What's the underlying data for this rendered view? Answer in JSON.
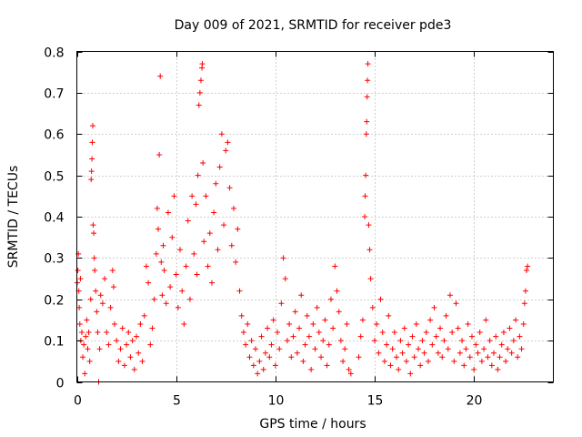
{
  "chart_data": {
    "type": "scatter",
    "title": "Day 009 of 2021, SRMTID for receiver pde3",
    "xlabel": "GPS time / hours",
    "ylabel": "SRMTID / TECUs",
    "xlim": [
      0,
      24
    ],
    "ylim": [
      0,
      0.8
    ],
    "grid": true,
    "marker": "plus",
    "x_ticks": [
      {
        "value": 0,
        "label": "0"
      },
      {
        "value": 5,
        "label": "5"
      },
      {
        "value": 10,
        "label": "10"
      },
      {
        "value": 15,
        "label": "15"
      },
      {
        "value": 20,
        "label": "20"
      }
    ],
    "y_ticks": [
      {
        "value": 0,
        "label": "0"
      },
      {
        "value": 0.1,
        "label": "0.1"
      },
      {
        "value": 0.2,
        "label": "0.2"
      },
      {
        "value": 0.3,
        "label": "0.3"
      },
      {
        "value": 0.4,
        "label": "0.4"
      },
      {
        "value": 0.5,
        "label": "0.5"
      },
      {
        "value": 0.6,
        "label": "0.6"
      },
      {
        "value": 0.7,
        "label": "0.7"
      },
      {
        "value": 0.8,
        "label": "0.8"
      }
    ],
    "series": [
      {
        "name": "SRMTID",
        "color": "#ff0000",
        "points": [
          [
            0.02,
            0.24
          ],
          [
            0.05,
            0.27
          ],
          [
            0.08,
            0.31
          ],
          [
            0.1,
            0.22
          ],
          [
            0.12,
            0.18
          ],
          [
            0.15,
            0.14
          ],
          [
            0.18,
            0.25
          ],
          [
            0.2,
            0.1
          ],
          [
            0.25,
            0.12
          ],
          [
            0.3,
            0.06
          ],
          [
            0.35,
            0.09
          ],
          [
            0.4,
            0.02
          ],
          [
            0.45,
            0.11
          ],
          [
            0.5,
            0.15
          ],
          [
            0.55,
            0.08
          ],
          [
            0.6,
            0.12
          ],
          [
            0.65,
            0.05
          ],
          [
            0.7,
            0.2
          ],
          [
            0.72,
            0.49
          ],
          [
            0.74,
            0.51
          ],
          [
            0.76,
            0.54
          ],
          [
            0.78,
            0.58
          ],
          [
            0.8,
            0.62
          ],
          [
            0.82,
            0.38
          ],
          [
            0.85,
            0.36
          ],
          [
            0.88,
            0.3
          ],
          [
            0.9,
            0.27
          ],
          [
            0.95,
            0.22
          ],
          [
            1.0,
            0.17
          ],
          [
            1.05,
            0.12
          ],
          [
            1.1,
            0.0
          ],
          [
            1.15,
            0.08
          ],
          [
            1.2,
            0.21
          ],
          [
            1.3,
            0.19
          ],
          [
            1.4,
            0.25
          ],
          [
            1.5,
            0.12
          ],
          [
            1.6,
            0.09
          ],
          [
            1.7,
            0.18
          ],
          [
            1.8,
            0.27
          ],
          [
            1.85,
            0.23
          ],
          [
            1.9,
            0.14
          ],
          [
            2.0,
            0.1
          ],
          [
            2.1,
            0.05
          ],
          [
            2.2,
            0.08
          ],
          [
            2.3,
            0.13
          ],
          [
            2.4,
            0.04
          ],
          [
            2.5,
            0.09
          ],
          [
            2.6,
            0.12
          ],
          [
            2.7,
            0.06
          ],
          [
            2.8,
            0.1
          ],
          [
            2.9,
            0.03
          ],
          [
            3.0,
            0.11
          ],
          [
            3.1,
            0.07
          ],
          [
            3.2,
            0.14
          ],
          [
            3.3,
            0.05
          ],
          [
            3.4,
            0.16
          ],
          [
            3.5,
            0.28
          ],
          [
            3.6,
            0.24
          ],
          [
            3.7,
            0.09
          ],
          [
            3.8,
            0.13
          ],
          [
            3.9,
            0.2
          ],
          [
            4.0,
            0.31
          ],
          [
            4.05,
            0.42
          ],
          [
            4.1,
            0.37
          ],
          [
            4.15,
            0.55
          ],
          [
            4.2,
            0.74
          ],
          [
            4.25,
            0.29
          ],
          [
            4.3,
            0.21
          ],
          [
            4.35,
            0.33
          ],
          [
            4.4,
            0.27
          ],
          [
            4.5,
            0.19
          ],
          [
            4.6,
            0.41
          ],
          [
            4.7,
            0.23
          ],
          [
            4.8,
            0.35
          ],
          [
            4.9,
            0.45
          ],
          [
            5.0,
            0.26
          ],
          [
            5.1,
            0.18
          ],
          [
            5.2,
            0.32
          ],
          [
            5.3,
            0.22
          ],
          [
            5.4,
            0.14
          ],
          [
            5.5,
            0.28
          ],
          [
            5.6,
            0.39
          ],
          [
            5.7,
            0.2
          ],
          [
            5.8,
            0.45
          ],
          [
            5.9,
            0.31
          ],
          [
            6.0,
            0.43
          ],
          [
            6.05,
            0.26
          ],
          [
            6.1,
            0.5
          ],
          [
            6.15,
            0.67
          ],
          [
            6.2,
            0.7
          ],
          [
            6.25,
            0.73
          ],
          [
            6.3,
            0.76
          ],
          [
            6.32,
            0.77
          ],
          [
            6.35,
            0.53
          ],
          [
            6.4,
            0.34
          ],
          [
            6.5,
            0.45
          ],
          [
            6.6,
            0.28
          ],
          [
            6.7,
            0.36
          ],
          [
            6.8,
            0.24
          ],
          [
            6.9,
            0.41
          ],
          [
            7.0,
            0.48
          ],
          [
            7.1,
            0.32
          ],
          [
            7.2,
            0.52
          ],
          [
            7.3,
            0.6
          ],
          [
            7.4,
            0.38
          ],
          [
            7.5,
            0.56
          ],
          [
            7.6,
            0.58
          ],
          [
            7.7,
            0.47
          ],
          [
            7.8,
            0.33
          ],
          [
            7.9,
            0.42
          ],
          [
            8.0,
            0.29
          ],
          [
            8.1,
            0.37
          ],
          [
            8.2,
            0.22
          ],
          [
            8.3,
            0.16
          ],
          [
            8.4,
            0.12
          ],
          [
            8.5,
            0.09
          ],
          [
            8.6,
            0.14
          ],
          [
            8.7,
            0.06
          ],
          [
            8.8,
            0.1
          ],
          [
            8.9,
            0.04
          ],
          [
            9.0,
            0.08
          ],
          [
            9.1,
            0.02
          ],
          [
            9.2,
            0.05
          ],
          [
            9.3,
            0.11
          ],
          [
            9.4,
            0.03
          ],
          [
            9.5,
            0.07
          ],
          [
            9.6,
            0.13
          ],
          [
            9.7,
            0.06
          ],
          [
            9.8,
            0.09
          ],
          [
            9.9,
            0.15
          ],
          [
            10.0,
            0.04
          ],
          [
            10.1,
            0.12
          ],
          [
            10.2,
            0.08
          ],
          [
            10.3,
            0.19
          ],
          [
            10.4,
            0.3
          ],
          [
            10.5,
            0.25
          ],
          [
            10.6,
            0.1
          ],
          [
            10.7,
            0.14
          ],
          [
            10.8,
            0.06
          ],
          [
            10.9,
            0.11
          ],
          [
            11.0,
            0.17
          ],
          [
            11.1,
            0.07
          ],
          [
            11.2,
            0.13
          ],
          [
            11.3,
            0.21
          ],
          [
            11.4,
            0.05
          ],
          [
            11.5,
            0.09
          ],
          [
            11.6,
            0.16
          ],
          [
            11.7,
            0.11
          ],
          [
            11.8,
            0.03
          ],
          [
            11.9,
            0.14
          ],
          [
            12.0,
            0.08
          ],
          [
            12.1,
            0.18
          ],
          [
            12.2,
            0.12
          ],
          [
            12.3,
            0.06
          ],
          [
            12.4,
            0.1
          ],
          [
            12.5,
            0.15
          ],
          [
            12.6,
            0.04
          ],
          [
            12.7,
            0.09
          ],
          [
            12.8,
            0.2
          ],
          [
            12.9,
            0.13
          ],
          [
            13.0,
            0.28
          ],
          [
            13.1,
            0.22
          ],
          [
            13.2,
            0.17
          ],
          [
            13.3,
            0.1
          ],
          [
            13.4,
            0.05
          ],
          [
            13.5,
            0.08
          ],
          [
            13.6,
            0.14
          ],
          [
            13.7,
            0.03
          ],
          [
            13.8,
            0.02
          ],
          [
            14.2,
            0.06
          ],
          [
            14.3,
            0.11
          ],
          [
            14.4,
            0.15
          ],
          [
            14.5,
            0.4
          ],
          [
            14.52,
            0.45
          ],
          [
            14.55,
            0.5
          ],
          [
            14.58,
            0.6
          ],
          [
            14.6,
            0.63
          ],
          [
            14.62,
            0.69
          ],
          [
            14.64,
            0.73
          ],
          [
            14.66,
            0.77
          ],
          [
            14.7,
            0.38
          ],
          [
            14.75,
            0.32
          ],
          [
            14.8,
            0.25
          ],
          [
            14.9,
            0.18
          ],
          [
            15.0,
            0.1
          ],
          [
            15.1,
            0.14
          ],
          [
            15.2,
            0.07
          ],
          [
            15.3,
            0.2
          ],
          [
            15.4,
            0.12
          ],
          [
            15.5,
            0.05
          ],
          [
            15.6,
            0.09
          ],
          [
            15.7,
            0.16
          ],
          [
            15.8,
            0.04
          ],
          [
            15.9,
            0.08
          ],
          [
            16.0,
            0.12
          ],
          [
            16.1,
            0.06
          ],
          [
            16.2,
            0.03
          ],
          [
            16.3,
            0.1
          ],
          [
            16.4,
            0.07
          ],
          [
            16.5,
            0.13
          ],
          [
            16.6,
            0.05
          ],
          [
            16.7,
            0.09
          ],
          [
            16.8,
            0.02
          ],
          [
            16.9,
            0.11
          ],
          [
            17.0,
            0.06
          ],
          [
            17.1,
            0.14
          ],
          [
            17.2,
            0.08
          ],
          [
            17.3,
            0.04
          ],
          [
            17.4,
            0.1
          ],
          [
            17.5,
            0.07
          ],
          [
            17.6,
            0.12
          ],
          [
            17.7,
            0.05
          ],
          [
            17.8,
            0.15
          ],
          [
            17.9,
            0.09
          ],
          [
            18.0,
            0.18
          ],
          [
            18.1,
            0.11
          ],
          [
            18.2,
            0.07
          ],
          [
            18.3,
            0.13
          ],
          [
            18.4,
            0.06
          ],
          [
            18.5,
            0.1
          ],
          [
            18.6,
            0.16
          ],
          [
            18.7,
            0.08
          ],
          [
            18.8,
            0.21
          ],
          [
            18.9,
            0.12
          ],
          [
            19.0,
            0.05
          ],
          [
            19.1,
            0.19
          ],
          [
            19.2,
            0.13
          ],
          [
            19.3,
            0.07
          ],
          [
            19.4,
            0.1
          ],
          [
            19.5,
            0.04
          ],
          [
            19.6,
            0.08
          ],
          [
            19.7,
            0.14
          ],
          [
            19.8,
            0.06
          ],
          [
            19.9,
            0.11
          ],
          [
            20.0,
            0.03
          ],
          [
            20.1,
            0.09
          ],
          [
            20.2,
            0.07
          ],
          [
            20.3,
            0.12
          ],
          [
            20.4,
            0.05
          ],
          [
            20.5,
            0.08
          ],
          [
            20.6,
            0.15
          ],
          [
            20.7,
            0.06
          ],
          [
            20.8,
            0.1
          ],
          [
            20.9,
            0.04
          ],
          [
            21.0,
            0.07
          ],
          [
            21.1,
            0.11
          ],
          [
            21.2,
            0.03
          ],
          [
            21.3,
            0.06
          ],
          [
            21.4,
            0.09
          ],
          [
            21.5,
            0.12
          ],
          [
            21.6,
            0.05
          ],
          [
            21.7,
            0.08
          ],
          [
            21.8,
            0.13
          ],
          [
            21.9,
            0.07
          ],
          [
            22.0,
            0.1
          ],
          [
            22.1,
            0.15
          ],
          [
            22.2,
            0.06
          ],
          [
            22.3,
            0.11
          ],
          [
            22.4,
            0.08
          ],
          [
            22.5,
            0.14
          ],
          [
            22.55,
            0.19
          ],
          [
            22.6,
            0.22
          ],
          [
            22.65,
            0.27
          ],
          [
            22.7,
            0.28
          ]
        ]
      }
    ]
  }
}
